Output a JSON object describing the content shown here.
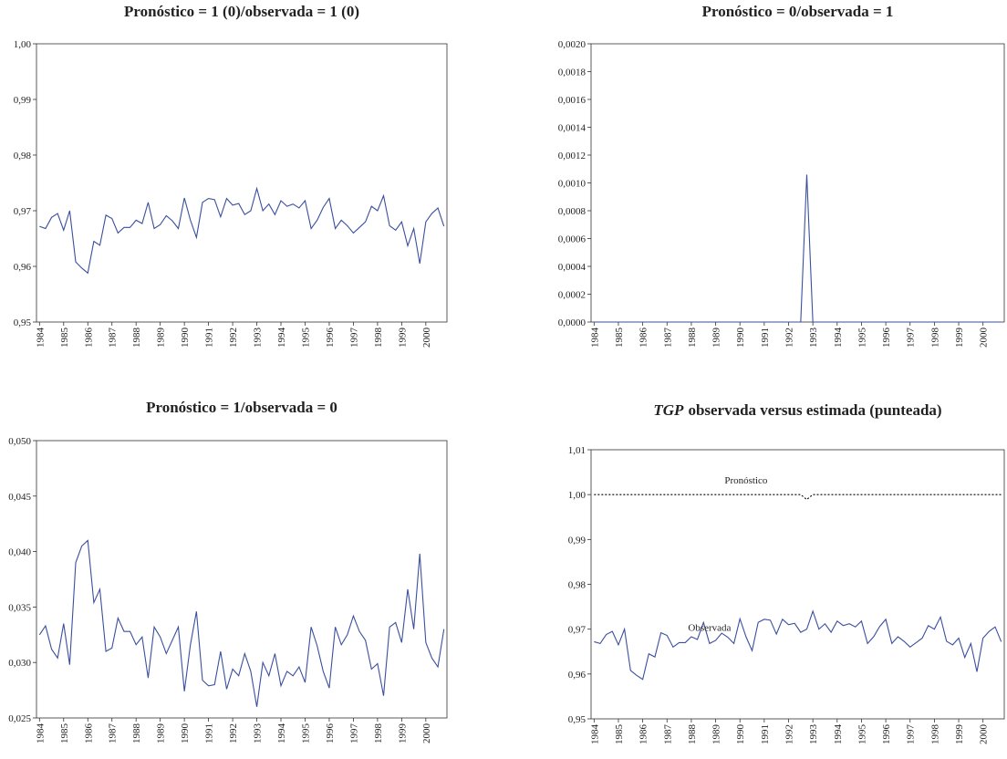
{
  "chart_data": [
    {
      "type": "line",
      "title": "Pronóstico = 1 (0)/observada = 1 (0)",
      "categories": [
        "1984",
        null,
        null,
        null,
        "1985",
        null,
        null,
        null,
        "1986",
        null,
        null,
        null,
        "1987",
        null,
        null,
        null,
        "1988",
        null,
        null,
        null,
        "1989",
        null,
        null,
        null,
        "1990",
        null,
        null,
        null,
        "1991",
        null,
        null,
        null,
        "1992",
        null,
        null,
        null,
        "1993",
        null,
        null,
        null,
        "1994",
        null,
        null,
        null,
        "1995",
        null,
        null,
        null,
        "1996",
        null,
        null,
        null,
        "1997",
        null,
        null,
        null,
        "1998",
        null,
        null,
        null,
        "1999",
        null,
        null,
        null,
        "2000",
        null,
        null,
        null
      ],
      "series": [
        {
          "color": "#3b4f9e",
          "values": [
            0.9672,
            0.9668,
            0.9688,
            0.9695,
            0.9665,
            0.97,
            0.9608,
            0.9597,
            0.9588,
            0.9645,
            0.9638,
            0.9692,
            0.9686,
            0.966,
            0.967,
            0.967,
            0.9683,
            0.9677,
            0.9715,
            0.9668,
            0.9675,
            0.9691,
            0.9682,
            0.9668,
            0.9723,
            0.9683,
            0.9652,
            0.9715,
            0.9722,
            0.972,
            0.9689,
            0.9722,
            0.971,
            0.9713,
            0.9693,
            0.97,
            0.974,
            0.97,
            0.9712,
            0.9693,
            0.9718,
            0.9708,
            0.9712,
            0.9705,
            0.9718,
            0.9668,
            0.9683,
            0.9706,
            0.9722,
            0.9668,
            0.9683,
            0.9673,
            0.966,
            0.967,
            0.968,
            0.9708,
            0.97,
            0.9727,
            0.9673,
            0.9665,
            0.968,
            0.9637,
            0.9668,
            0.9605,
            0.968,
            0.9695,
            0.9705,
            0.9672
          ]
        }
      ],
      "ylim": [
        0.95,
        1.0
      ],
      "yticks": [
        {
          "value": 0.95,
          "label": "0,95"
        },
        {
          "value": 0.96,
          "label": "0,96"
        },
        {
          "value": 0.97,
          "label": "0,97"
        },
        {
          "value": 0.98,
          "label": "0,98"
        },
        {
          "value": 0.99,
          "label": "0,99"
        },
        {
          "value": 1.0,
          "label": "1,00"
        }
      ]
    },
    {
      "type": "line",
      "title": "Pronóstico = 0/observada = 1",
      "categories": [
        "1984",
        null,
        null,
        null,
        "1985",
        null,
        null,
        null,
        "1986",
        null,
        null,
        null,
        "1987",
        null,
        null,
        null,
        "1988",
        null,
        null,
        null,
        "1989",
        null,
        null,
        null,
        "1990",
        null,
        null,
        null,
        "1991",
        null,
        null,
        null,
        "1992",
        null,
        null,
        null,
        "1993",
        null,
        null,
        null,
        "1994",
        null,
        null,
        null,
        "1995",
        null,
        null,
        null,
        "1996",
        null,
        null,
        null,
        "1997",
        null,
        null,
        null,
        "1998",
        null,
        null,
        null,
        "1999",
        null,
        null,
        null,
        "2000",
        null,
        null,
        null
      ],
      "series": [
        {
          "color": "#3b4f9e",
          "values": [
            0,
            0,
            0,
            0,
            0,
            0,
            0,
            0,
            0,
            0,
            0,
            0,
            0,
            0,
            0,
            0,
            0,
            0,
            0,
            0,
            0,
            0,
            0,
            0,
            0,
            0,
            0,
            0,
            0,
            0,
            0,
            0,
            0,
            0,
            0,
            0.00106,
            0,
            0,
            0,
            0,
            0,
            0,
            0,
            0,
            0,
            0,
            0,
            0,
            0,
            0,
            0,
            0,
            0,
            0,
            0,
            0,
            0,
            0,
            0,
            0,
            0,
            0,
            0,
            0,
            0,
            0,
            0,
            0
          ]
        }
      ],
      "ylim": [
        0,
        0.002
      ],
      "yticks": [
        {
          "value": 0,
          "label": "0,0000"
        },
        {
          "value": 0.0002,
          "label": "0,0002"
        },
        {
          "value": 0.0004,
          "label": "0,0004"
        },
        {
          "value": 0.0006,
          "label": "0,0006"
        },
        {
          "value": 0.0008,
          "label": "0,0008"
        },
        {
          "value": 0.001,
          "label": "0,0010"
        },
        {
          "value": 0.0012,
          "label": "0,0012"
        },
        {
          "value": 0.0014,
          "label": "0,0014"
        },
        {
          "value": 0.0016,
          "label": "0,0016"
        },
        {
          "value": 0.0018,
          "label": "0,0018"
        },
        {
          "value": 0.002,
          "label": "0,0020"
        }
      ]
    },
    {
      "type": "line",
      "title": "Pronóstico = 1/observada = 0",
      "categories": [
        "1984",
        null,
        null,
        null,
        "1985",
        null,
        null,
        null,
        "1986",
        null,
        null,
        null,
        "1987",
        null,
        null,
        null,
        "1988",
        null,
        null,
        null,
        "1989",
        null,
        null,
        null,
        "1990",
        null,
        null,
        null,
        "1991",
        null,
        null,
        null,
        "1992",
        null,
        null,
        null,
        "1993",
        null,
        null,
        null,
        "1994",
        null,
        null,
        null,
        "1995",
        null,
        null,
        null,
        "1996",
        null,
        null,
        null,
        "1997",
        null,
        null,
        null,
        "1998",
        null,
        null,
        null,
        "1999",
        null,
        null,
        null,
        "2000",
        null,
        null,
        null
      ],
      "series": [
        {
          "color": "#3b4f9e",
          "values": [
            0.0325,
            0.0333,
            0.0312,
            0.0304,
            0.0335,
            0.0298,
            0.039,
            0.0405,
            0.041,
            0.0354,
            0.0366,
            0.031,
            0.0313,
            0.034,
            0.0328,
            0.0328,
            0.0316,
            0.0323,
            0.0286,
            0.0332,
            0.0323,
            0.0308,
            0.032,
            0.0332,
            0.0274,
            0.0316,
            0.0346,
            0.0284,
            0.0279,
            0.028,
            0.031,
            0.0276,
            0.0294,
            0.0288,
            0.0308,
            0.0292,
            0.026,
            0.03,
            0.0288,
            0.0308,
            0.0279,
            0.0292,
            0.0288,
            0.0296,
            0.0282,
            0.0332,
            0.0315,
            0.0292,
            0.0277,
            0.0332,
            0.0316,
            0.0325,
            0.0342,
            0.0328,
            0.032,
            0.0294,
            0.0299,
            0.027,
            0.0332,
            0.0336,
            0.0318,
            0.0366,
            0.033,
            0.0398,
            0.0318,
            0.0304,
            0.0296,
            0.033
          ]
        }
      ],
      "ylim": [
        0.025,
        0.05
      ],
      "yticks": [
        {
          "value": 0.025,
          "label": "0,025"
        },
        {
          "value": 0.03,
          "label": "0,030"
        },
        {
          "value": 0.035,
          "label": "0,035"
        },
        {
          "value": 0.04,
          "label": "0,040"
        },
        {
          "value": 0.045,
          "label": "0,045"
        },
        {
          "value": 0.05,
          "label": "0,050"
        }
      ]
    },
    {
      "type": "line",
      "title_italic": "TGP",
      "title": "observada versus estimada (punteada)",
      "categories": [
        "1984",
        null,
        null,
        null,
        "1985",
        null,
        null,
        null,
        "1986",
        null,
        null,
        null,
        "1987",
        null,
        null,
        null,
        "1988",
        null,
        null,
        null,
        "1989",
        null,
        null,
        null,
        "1990",
        null,
        null,
        null,
        "1991",
        null,
        null,
        null,
        "1992",
        null,
        null,
        null,
        "1993",
        null,
        null,
        null,
        "1994",
        null,
        null,
        null,
        "1995",
        null,
        null,
        null,
        "1996",
        null,
        null,
        null,
        "1997",
        null,
        null,
        null,
        "1998",
        null,
        null,
        null,
        "1999",
        null,
        null,
        null,
        "2000",
        null,
        null,
        null
      ],
      "series": [
        {
          "name": "Pronóstico",
          "color": "#000000",
          "style": "dotted",
          "values": [
            1,
            1,
            1,
            1,
            1,
            1,
            1,
            1,
            1,
            1,
            1,
            1,
            1,
            1,
            1,
            1,
            1,
            1,
            1,
            1,
            1,
            1,
            1,
            1,
            1,
            1,
            1,
            1,
            1,
            1,
            1,
            1,
            1,
            1,
            1,
            0.9989,
            1,
            1,
            1,
            1,
            1,
            1,
            1,
            1,
            1,
            1,
            1,
            1,
            1,
            1,
            1,
            1,
            1,
            1,
            1,
            1,
            1,
            1,
            1,
            1,
            1,
            1,
            1,
            1,
            1,
            1,
            1,
            1
          ]
        },
        {
          "name": "Observada",
          "color": "#3b4f9e",
          "values": [
            0.9672,
            0.9668,
            0.9688,
            0.9695,
            0.9665,
            0.97,
            0.9608,
            0.9597,
            0.9588,
            0.9645,
            0.9638,
            0.9692,
            0.9686,
            0.966,
            0.967,
            0.967,
            0.9683,
            0.9677,
            0.9715,
            0.9668,
            0.9675,
            0.9691,
            0.9682,
            0.9668,
            0.9723,
            0.9683,
            0.9652,
            0.9715,
            0.9722,
            0.972,
            0.9689,
            0.9722,
            0.971,
            0.9713,
            0.9693,
            0.97,
            0.974,
            0.97,
            0.9712,
            0.9693,
            0.9718,
            0.9708,
            0.9712,
            0.9705,
            0.9718,
            0.9668,
            0.9683,
            0.9706,
            0.9722,
            0.9668,
            0.9683,
            0.9673,
            0.966,
            0.967,
            0.968,
            0.9708,
            0.97,
            0.9727,
            0.9673,
            0.9665,
            0.968,
            0.9637,
            0.9668,
            0.9605,
            0.968,
            0.9695,
            0.9705,
            0.9672
          ]
        }
      ],
      "ylim": [
        0.95,
        1.01
      ],
      "yticks": [
        {
          "value": 0.95,
          "label": "0,95"
        },
        {
          "value": 0.96,
          "label": "0,96"
        },
        {
          "value": 0.97,
          "label": "0,97"
        },
        {
          "value": 0.98,
          "label": "0,98"
        },
        {
          "value": 0.99,
          "label": "0,99"
        },
        {
          "value": 1.0,
          "label": "1,00"
        },
        {
          "value": 1.01,
          "label": "1,01"
        }
      ]
    }
  ]
}
